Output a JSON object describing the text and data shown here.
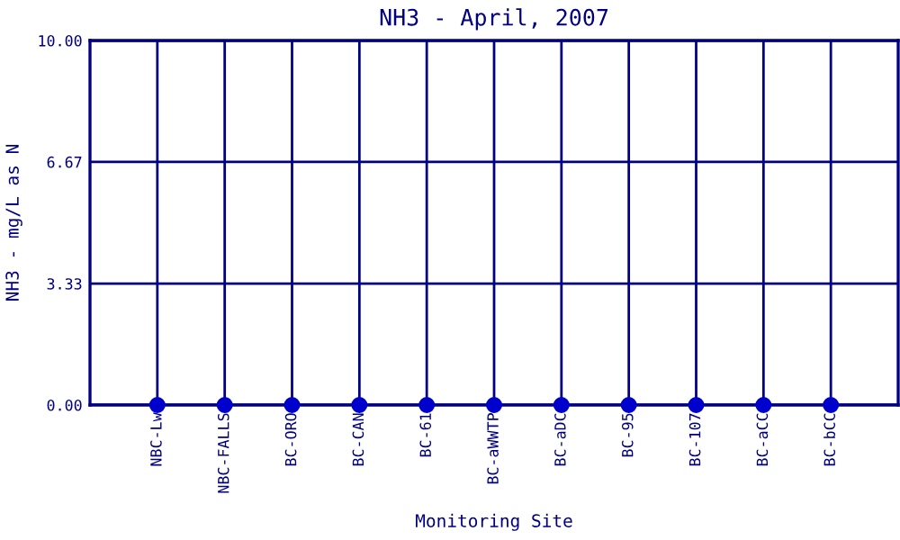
{
  "chart_data": {
    "type": "scatter",
    "title": "NH3 - April, 2007",
    "xlabel": "Monitoring Site",
    "ylabel": "NH3 - mg/L as N",
    "categories": [
      "NBC-Lw",
      "NBC-FALLS",
      "BC-ORO",
      "BC-CAN",
      "BC-61",
      "BC-aWWTP",
      "BC-aDC",
      "BC-95",
      "BC-107",
      "BC-aCC",
      "BC-bCC"
    ],
    "values": [
      0,
      0,
      0,
      0,
      0,
      0,
      0,
      0,
      0,
      0,
      0
    ],
    "color": "#0000cc",
    "marker": "circle",
    "grid": true,
    "ylim": [
      0,
      10
    ],
    "yticks": [
      {
        "value": 0,
        "label": "0.00"
      },
      {
        "value": 3.33,
        "label": "3.33"
      },
      {
        "value": 6.67,
        "label": "6.67"
      },
      {
        "value": 10,
        "label": "10.00"
      }
    ]
  }
}
